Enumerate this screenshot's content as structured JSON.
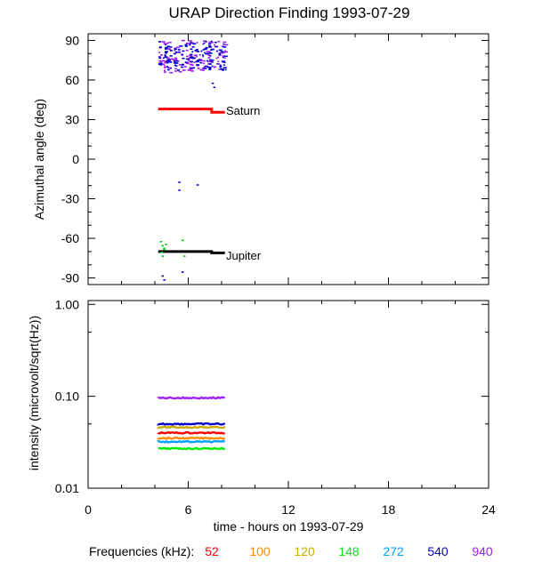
{
  "chart_data": {
    "title": "URAP Direction Finding  1993-07-29",
    "xlabel": "time - hours on 1993-07-29",
    "xlim": [
      0,
      24
    ],
    "xticks": [
      0,
      6,
      12,
      18,
      24
    ],
    "panels": [
      {
        "type": "scatter",
        "ylabel": "Azimuthal angle (deg)",
        "ylim": [
          -95,
          95
        ],
        "yticks": [
          90,
          60,
          30,
          0,
          -30,
          -60,
          -90
        ],
        "annotations": [
          {
            "text": "Saturn",
            "x": 8.2,
            "y": 35
          },
          {
            "text": "Jupiter",
            "x": 8.2,
            "y": -70
          }
        ],
        "series": [
          {
            "name": "Saturn",
            "color": "#ff0000",
            "type": "line",
            "points": [
              [
                4.2,
                38
              ],
              [
                7.4,
                38
              ],
              [
                7.4,
                35.5
              ],
              [
                8.2,
                35.5
              ]
            ]
          },
          {
            "name": "Jupiter",
            "color": "#000000",
            "type": "line",
            "points": [
              [
                4.2,
                -70
              ],
              [
                7.4,
                -70
              ],
              [
                7.4,
                -71
              ],
              [
                8.2,
                -71
              ]
            ]
          },
          {
            "color": "#a020f0",
            "type": "scatter-band",
            "x": [
              4.2,
              8.2
            ],
            "y": [
              66,
              91
            ]
          },
          {
            "color": "#0000cd",
            "type": "scatter-band",
            "x": [
              4.2,
              8.2
            ],
            "y": [
              68,
              90
            ]
          },
          {
            "color": "#00cc00",
            "type": "scatter",
            "points": [
              [
                4.3,
                -62
              ],
              [
                4.4,
                -65
              ],
              [
                4.5,
                -68
              ],
              [
                4.6,
                -64
              ],
              [
                4.4,
                -73
              ],
              [
                5.6,
                -61
              ],
              [
                5.7,
                -73
              ],
              [
                4.5,
                -67
              ],
              [
                4.35,
                -70
              ]
            ]
          },
          {
            "color": "#0000cd",
            "type": "scatter",
            "points": [
              [
                5.4,
                -17
              ],
              [
                5.4,
                -23
              ],
              [
                6.5,
                -19
              ],
              [
                7.4,
                58
              ],
              [
                7.5,
                55
              ],
              [
                4.4,
                -88
              ],
              [
                4.5,
                -91
              ],
              [
                5.6,
                -85
              ]
            ]
          }
        ]
      },
      {
        "type": "line",
        "ylabel": "intensity (microvolt/sqrt(Hz))",
        "ylim": [
          0.01,
          1.1
        ],
        "yscale": "log",
        "yticks": [
          "1.00",
          "0.10",
          "0.01"
        ],
        "series": [
          {
            "name": "52",
            "color": "#ff0000",
            "x": [
              4.2,
              8.2
            ],
            "y": 0.04
          },
          {
            "name": "100",
            "color": "#ff8c00",
            "x": [
              4.2,
              8.2
            ],
            "y": 0.035
          },
          {
            "name": "120",
            "color": "#ccaa00",
            "x": [
              4.2,
              8.2
            ],
            "y": 0.046
          },
          {
            "name": "148",
            "color": "#00ee00",
            "x": [
              4.2,
              8.2
            ],
            "y": 0.027
          },
          {
            "name": "272",
            "color": "#00a0ff",
            "x": [
              4.2,
              8.2
            ],
            "y": 0.032
          },
          {
            "name": "540",
            "color": "#0000cd",
            "x": [
              4.2,
              8.2
            ],
            "y": 0.05
          },
          {
            "name": "940",
            "color": "#a020f0",
            "x": [
              4.2,
              8.2
            ],
            "y": 0.096
          }
        ]
      }
    ],
    "legend": {
      "label": "Frequencies (kHz):",
      "placement": "bottom",
      "entries": [
        {
          "text": "52",
          "color": "#ff0000"
        },
        {
          "text": "100",
          "color": "#ff8c00"
        },
        {
          "text": "120",
          "color": "#ccaa00"
        },
        {
          "text": "148",
          "color": "#00ee00"
        },
        {
          "text": "272",
          "color": "#00a0ff"
        },
        {
          "text": "540",
          "color": "#0000cd"
        },
        {
          "text": "940",
          "color": "#a020f0"
        }
      ]
    }
  }
}
